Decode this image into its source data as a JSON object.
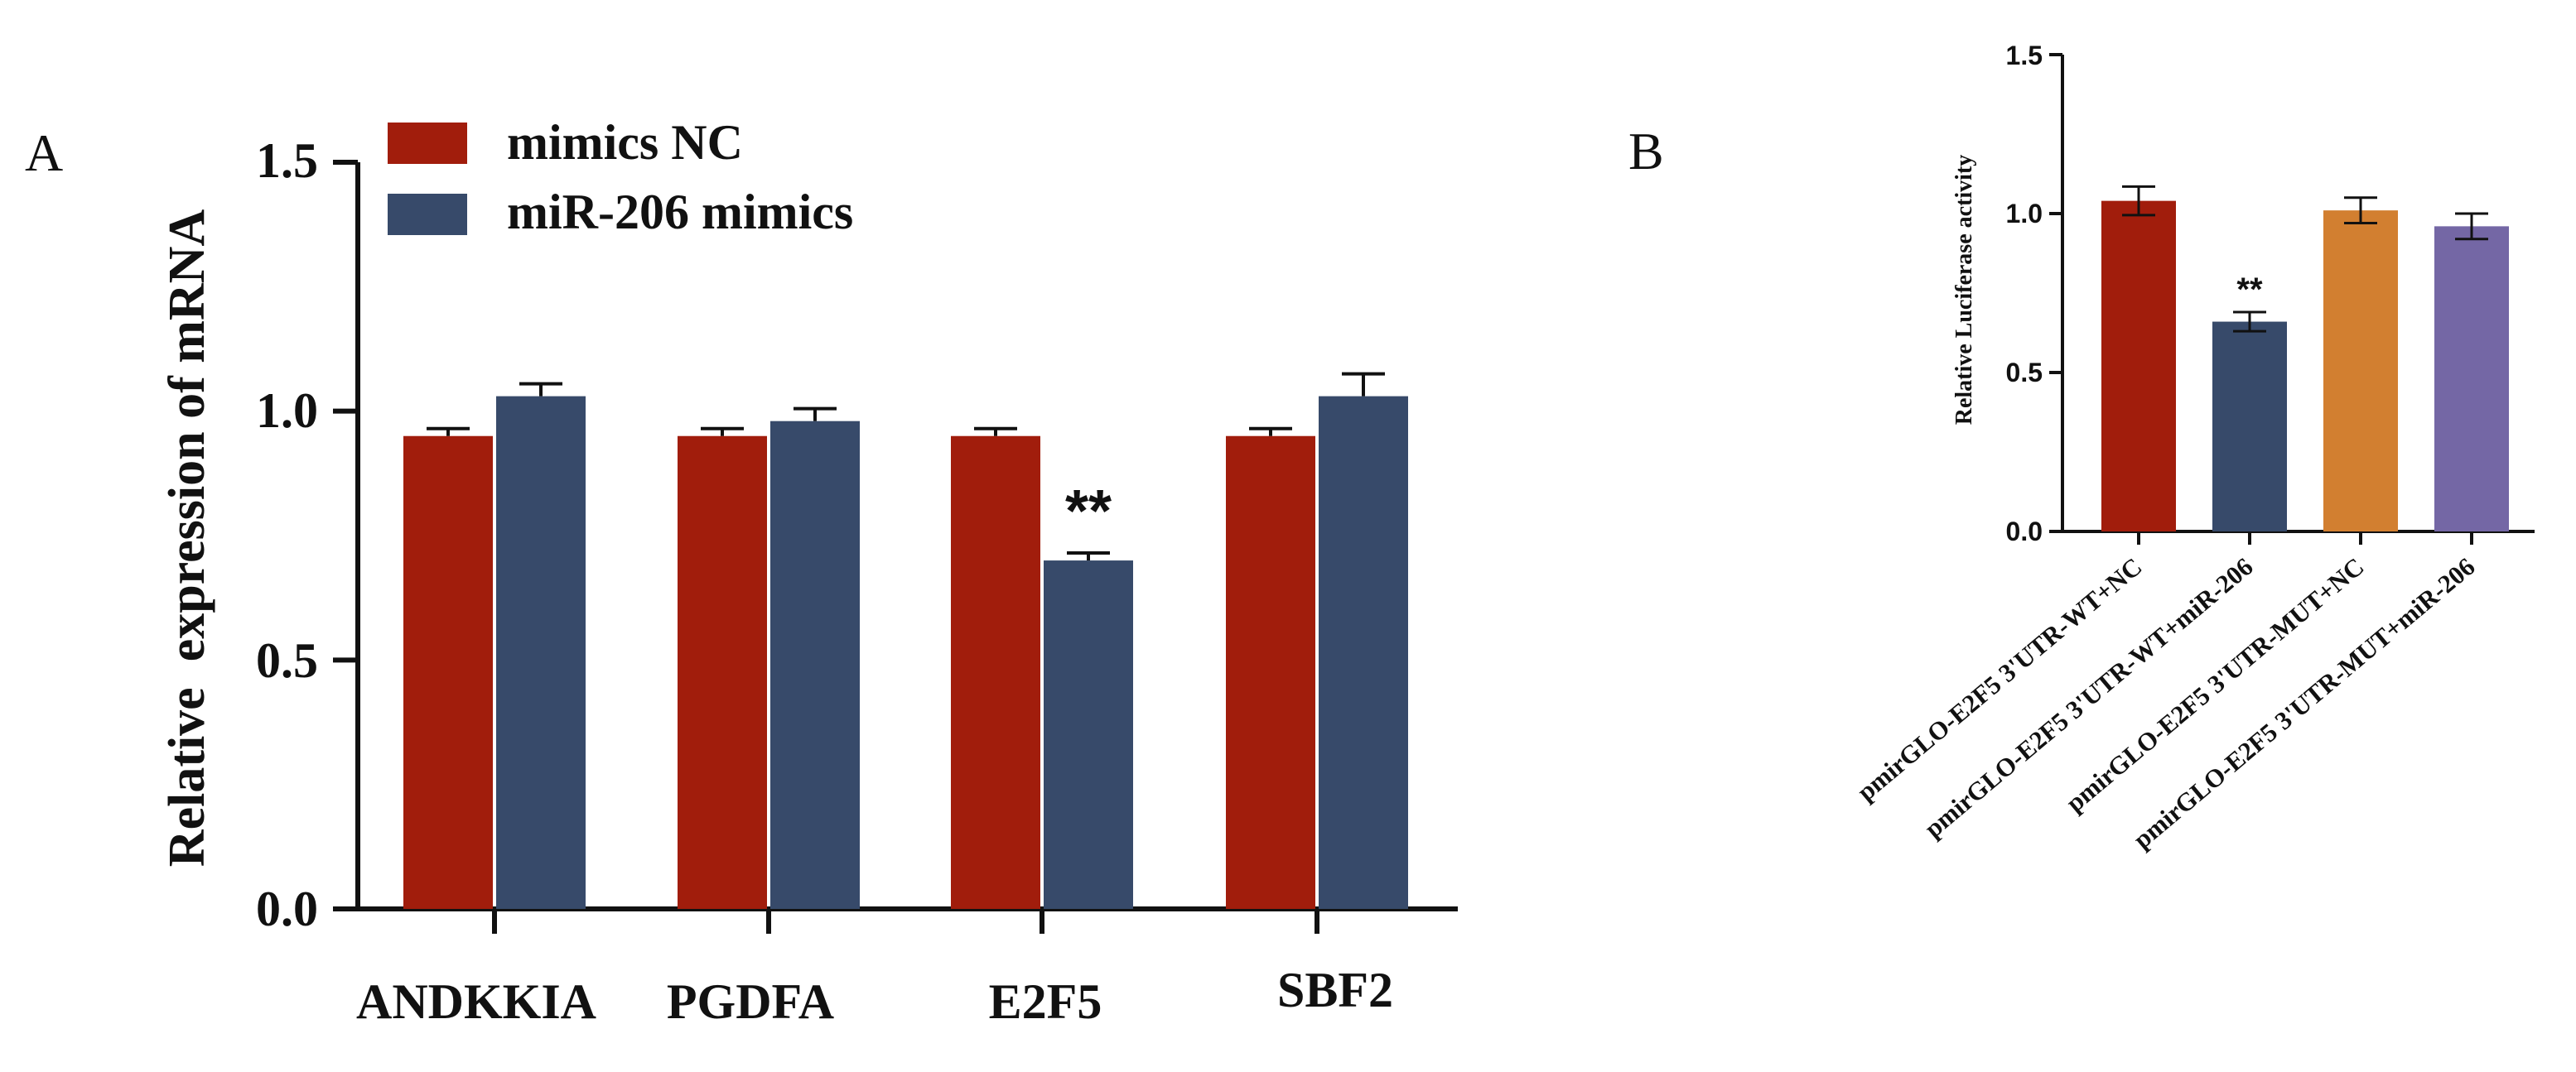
{
  "colors": {
    "background": "#ffffff",
    "axis": "#111111",
    "nc_red": "#a11d0c",
    "mimic_blue": "#374a6a",
    "mut_nc_orange": "#d27f30",
    "mut_mimic_purple": "#7467a5"
  },
  "chart_data": [
    {
      "panel": "A",
      "type": "bar",
      "title": "",
      "xlabel": "",
      "ylabel": "Relative  expression of mRNA",
      "ylim": [
        0,
        1.5
      ],
      "yticks": [
        "0.0",
        "0.5",
        "1.0",
        "1.5"
      ],
      "categories": [
        "ANDKKIA",
        "PGDFA",
        "E2F5",
        "SBF2"
      ],
      "legend_position": "top-left",
      "series": [
        {
          "name": "mimics NC",
          "color": "#a11d0c",
          "values": [
            0.95,
            0.95,
            0.95,
            0.95
          ],
          "errors": [
            0.015,
            0.015,
            0.015,
            0.015
          ]
        },
        {
          "name": "miR-206 mimics",
          "color": "#374a6a",
          "values": [
            1.03,
            0.98,
            0.7,
            1.03
          ],
          "errors": [
            0.025,
            0.025,
            0.015,
            0.045
          ]
        }
      ],
      "annotations": [
        {
          "text": "**",
          "category": "E2F5",
          "series": 1
        }
      ]
    },
    {
      "panel": "B",
      "type": "bar",
      "title": "",
      "xlabel": "",
      "ylabel": "Relative Luciferase activity",
      "ylim": [
        0,
        1.5
      ],
      "yticks": [
        "0.0",
        "0.5",
        "1.0",
        "1.5"
      ],
      "categories": [
        "pmirGLO-E2F5 3'UTR-WT+NC",
        "pmirGLO-E2F5 3'UTR-WT+miR-206",
        "pmirGLO-E2F5 3'UTR-MUT+NC",
        "pmirGLO-E2F5 3'UTR-MUT+miR-206"
      ],
      "values": [
        1.04,
        0.66,
        1.01,
        0.96
      ],
      "errors": [
        0.045,
        0.03,
        0.04,
        0.04
      ],
      "colors": [
        "#a11d0c",
        "#374a6a",
        "#d27f30",
        "#7467a5"
      ],
      "annotations": [
        {
          "text": "**",
          "index": 1
        }
      ]
    }
  ]
}
